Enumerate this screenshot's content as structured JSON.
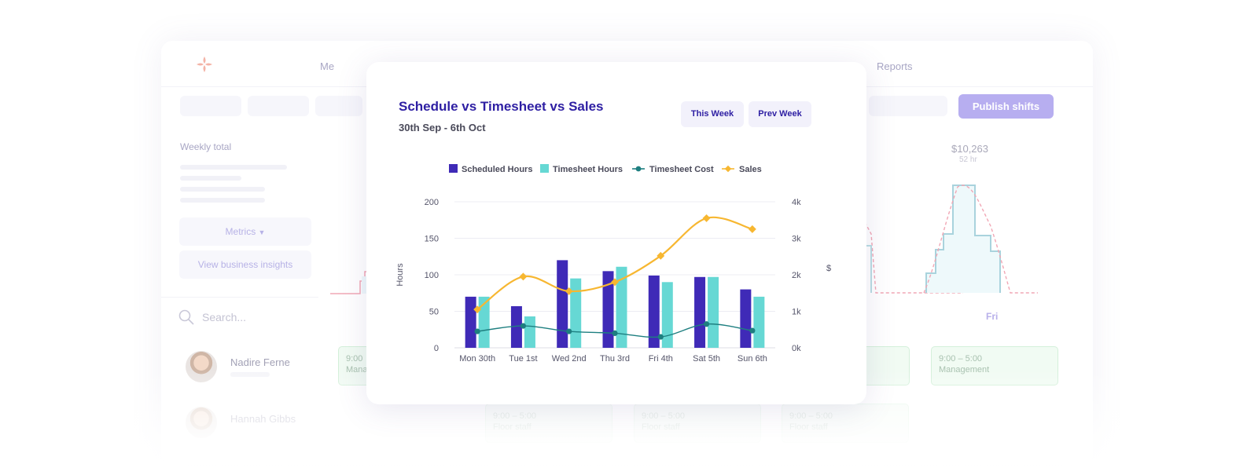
{
  "app": {
    "nav": {
      "menu_partial": "Me",
      "reports": "Reports"
    },
    "publish_label": "Publish shifts",
    "sidebar": {
      "weekly_total_label": "Weekly total",
      "metrics_label": "Metrics",
      "insights_label": "View business insights"
    },
    "search": {
      "placeholder": "Search..."
    },
    "friday": {
      "amount": "$10,263",
      "hours": "52 hr",
      "day": "Fri"
    },
    "employees": [
      {
        "name": "Nadire Ferne"
      },
      {
        "name": "Hannah Gibbs"
      }
    ],
    "shifts": [
      {
        "time": "9:00",
        "role": "Mana"
      },
      {
        "time": "9:00 – 5:00",
        "role": "Management"
      },
      {
        "time": "9:00 – 5:00",
        "role": "Floor staff"
      },
      {
        "time": "9:00 – 5:00",
        "role": "Floor staff"
      },
      {
        "time": "9:00 – 5:00",
        "role": "Floor staff"
      }
    ]
  },
  "card": {
    "title": "Schedule vs Timesheet vs Sales",
    "subtitle": "30th Sep - 6th Oct",
    "buttons": {
      "this_week": "This Week",
      "prev_week": "Prev Week"
    }
  },
  "colors": {
    "scheduled": "#3f2ab7",
    "timesheet": "#66d8d4",
    "cost": "#1e7f80",
    "sales": "#f7b731",
    "accent": "#2e1fa3"
  },
  "chart_data": {
    "type": "bar",
    "categories": [
      "Mon 30th",
      "Tue 1st",
      "Wed 2nd",
      "Thu 3rd",
      "Fri 4th",
      "Sat 5th",
      "Sun 6th"
    ],
    "series": [
      {
        "name": "Scheduled Hours",
        "kind": "bar",
        "axis": "left",
        "values": [
          70,
          57,
          120,
          105,
          99,
          97,
          80
        ]
      },
      {
        "name": "Timesheet Hours",
        "kind": "bar",
        "axis": "left",
        "values": [
          70,
          43,
          95,
          111,
          90,
          97,
          70
        ]
      },
      {
        "name": "Timesheet Cost",
        "kind": "line",
        "axis": "right",
        "values": [
          450,
          600,
          450,
          400,
          300,
          650,
          470
        ]
      },
      {
        "name": "Sales",
        "kind": "line",
        "axis": "right",
        "values": [
          1050,
          1950,
          1550,
          1800,
          2520,
          3550,
          3250
        ]
      }
    ],
    "ylabel": "Hours",
    "y2label": "$",
    "ylim": [
      0,
      200
    ],
    "y2lim": [
      0,
      4000
    ],
    "yticks": [
      "0",
      "50",
      "100",
      "150",
      "200"
    ],
    "y2ticks": [
      "0k",
      "1k",
      "2k",
      "3k",
      "4k"
    ],
    "legend": "top",
    "grid": true
  }
}
